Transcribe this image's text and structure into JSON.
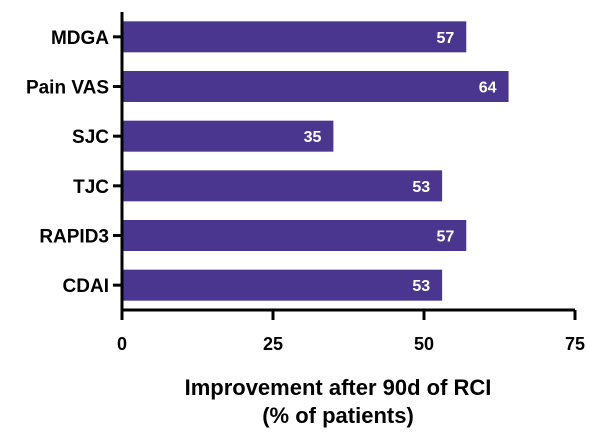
{
  "chart_data": {
    "type": "bar",
    "orientation": "horizontal",
    "categories": [
      "MDGA",
      "Pain VAS",
      "SJC",
      "TJC",
      "RAPID3",
      "CDAI"
    ],
    "values": [
      57,
      64,
      35,
      53,
      57,
      53
    ],
    "xticks": [
      0,
      25,
      50,
      75
    ],
    "xlim": [
      0,
      75
    ],
    "xlabel_line1": "Improvement after 90d of RCI",
    "xlabel_line2": "(% of patients)",
    "bar_color": "#4b368f",
    "grid": false,
    "legend": "none"
  }
}
